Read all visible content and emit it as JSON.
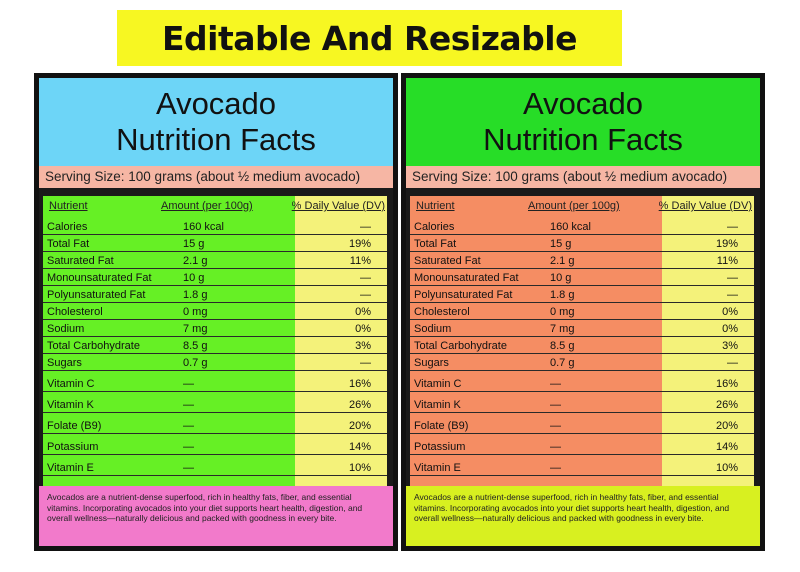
{
  "banner": "Editable And Resizable",
  "labels": [
    {
      "side": "left",
      "title_line1": "Avocado",
      "title_line2": "Nutrition Facts",
      "serving": "Serving Size: 100 grams (about ½ medium avocado)",
      "header": {
        "nutrient": "Nutrient",
        "amount": "Amount (per 100g)",
        "dv": "% Daily Value (DV)"
      },
      "rows": [
        {
          "n": "Calories",
          "a": "160 kcal",
          "d": "—"
        },
        {
          "n": "Total Fat",
          "a": "15 g",
          "d": "19%"
        },
        {
          "n": "Saturated Fat",
          "a": "2.1 g",
          "d": "11%"
        },
        {
          "n": "Monounsaturated Fat",
          "a": "10 g",
          "d": "—"
        },
        {
          "n": "Polyunsaturated Fat",
          "a": "1.8 g",
          "d": "—"
        },
        {
          "n": "Cholesterol",
          "a": "0 mg",
          "d": "0%"
        },
        {
          "n": "Sodium",
          "a": "7 mg",
          "d": "0%"
        },
        {
          "n": "Total Carbohydrate",
          "a": "8.5 g",
          "d": "3%"
        },
        {
          "n": "Sugars",
          "a": "0.7 g",
          "d": "—"
        },
        {
          "n": "Vitamin C",
          "a": "—",
          "d": "16%"
        },
        {
          "n": "Vitamin K",
          "a": "—",
          "d": "26%"
        },
        {
          "n": "Folate (B9)",
          "a": "—",
          "d": "20%"
        },
        {
          "n": "Potassium",
          "a": "—",
          "d": "14%"
        },
        {
          "n": "Vitamin E",
          "a": "—",
          "d": "10%"
        }
      ],
      "blurb": "Avocados are a nutrient-dense superfood, rich in healthy fats, fiber, and essential vitamins. Incorporating avocados into your diet supports heart health, digestion, and overall wellness—naturally delicious and packed with goodness in every bite."
    },
    {
      "side": "right",
      "title_line1": "Avocado",
      "title_line2": "Nutrition Facts",
      "serving": "Serving Size: 100 grams (about ½ medium avocado)",
      "header": {
        "nutrient": "Nutrient",
        "amount": "Amount (per 100g)",
        "dv": "% Daily Value (DV)"
      },
      "rows": [
        {
          "n": "Calories",
          "a": "160 kcal",
          "d": "—"
        },
        {
          "n": "Total Fat",
          "a": "15 g",
          "d": "19%"
        },
        {
          "n": "Saturated Fat",
          "a": "2.1 g",
          "d": "11%"
        },
        {
          "n": "Monounsaturated Fat",
          "a": "10 g",
          "d": "—"
        },
        {
          "n": "Polyunsaturated Fat",
          "a": "1.8 g",
          "d": "—"
        },
        {
          "n": "Cholesterol",
          "a": "0 mg",
          "d": "0%"
        },
        {
          "n": "Sodium",
          "a": "7 mg",
          "d": "0%"
        },
        {
          "n": "Total Carbohydrate",
          "a": "8.5 g",
          "d": "3%"
        },
        {
          "n": "Sugars",
          "a": "0.7 g",
          "d": "—"
        },
        {
          "n": "Vitamin C",
          "a": "—",
          "d": "16%"
        },
        {
          "n": "Vitamin K",
          "a": "—",
          "d": "26%"
        },
        {
          "n": "Folate (B9)",
          "a": "—",
          "d": "20%"
        },
        {
          "n": "Potassium",
          "a": "—",
          "d": "14%"
        },
        {
          "n": "Vitamin E",
          "a": "—",
          "d": "10%"
        }
      ],
      "blurb": "Avocados are a nutrient-dense superfood, rich in healthy fats, fiber, and essential vitamins. Incorporating avocados into your diet supports heart health, digestion, and overall wellness—naturally delicious and packed with goodness in every bite."
    }
  ]
}
